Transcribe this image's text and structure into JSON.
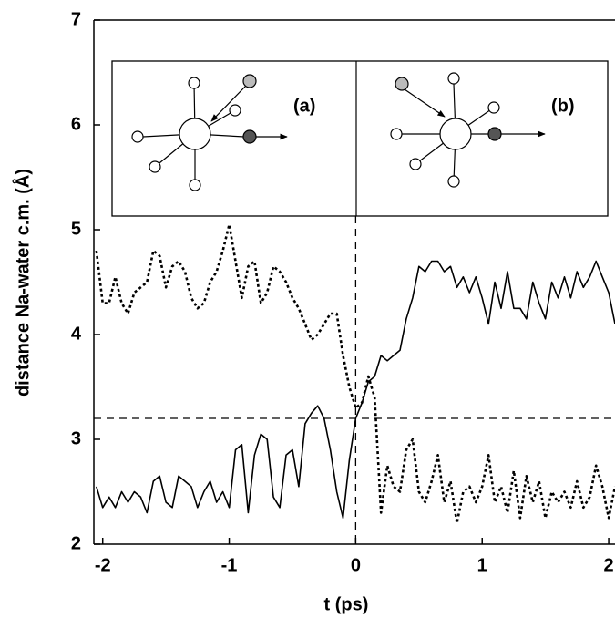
{
  "chart_data": {
    "type": "line",
    "x_label": "t (ps)",
    "y_label": "distance Na-water c.m. (Å)",
    "annotations": [
      "(a)",
      "(b)"
    ],
    "x": [
      -2.05,
      -2.0,
      -1.95,
      -1.9,
      -1.85,
      -1.8,
      -1.75,
      -1.7,
      -1.65,
      -1.6,
      -1.55,
      -1.5,
      -1.45,
      -1.4,
      -1.35,
      -1.3,
      -1.25,
      -1.2,
      -1.15,
      -1.1,
      -1.05,
      -1.0,
      -0.95,
      -0.9,
      -0.85,
      -0.8,
      -0.75,
      -0.7,
      -0.65,
      -0.6,
      -0.55,
      -0.5,
      -0.45,
      -0.4,
      -0.35,
      -0.3,
      -0.25,
      -0.2,
      -0.15,
      -0.1,
      -0.05,
      0,
      0.05,
      0.1,
      0.15,
      0.2,
      0.25,
      0.3,
      0.35,
      0.4,
      0.45,
      0.5,
      0.55,
      0.6,
      0.65,
      0.7,
      0.75,
      0.8,
      0.85,
      0.9,
      0.95,
      1.0,
      1.05,
      1.1,
      1.15,
      1.2,
      1.25,
      1.3,
      1.35,
      1.4,
      1.45,
      1.5,
      1.55,
      1.6,
      1.65,
      1.7,
      1.75,
      1.8,
      1.85,
      1.9,
      1.95,
      2.0,
      2.05
    ],
    "series": [
      {
        "color": "#000000",
        "dash": "solid",
        "values": [
          2.55,
          2.35,
          2.45,
          2.35,
          2.5,
          2.4,
          2.5,
          2.45,
          2.3,
          2.6,
          2.65,
          2.4,
          2.35,
          2.65,
          2.6,
          2.55,
          2.35,
          2.5,
          2.6,
          2.4,
          2.5,
          2.35,
          2.9,
          2.95,
          2.3,
          2.85,
          3.05,
          3.0,
          2.45,
          2.35,
          2.85,
          2.9,
          2.55,
          3.15,
          3.25,
          3.32,
          3.2,
          2.9,
          2.5,
          2.25,
          2.8,
          3.2,
          3.35,
          3.55,
          3.6,
          3.8,
          3.75,
          3.8,
          3.85,
          4.15,
          4.35,
          4.65,
          4.6,
          4.7,
          4.7,
          4.6,
          4.65,
          4.45,
          4.55,
          4.4,
          4.55,
          4.35,
          4.1,
          4.5,
          4.25,
          4.6,
          4.25,
          4.25,
          4.15,
          4.5,
          4.3,
          4.15,
          4.5,
          4.35,
          4.55,
          4.35,
          4.6,
          4.45,
          4.55,
          4.7,
          4.55,
          4.4,
          4.1
        ]
      },
      {
        "color": "#000000",
        "dash": "dotted",
        "values": [
          4.8,
          4.3,
          4.3,
          4.55,
          4.3,
          4.2,
          4.4,
          4.45,
          4.5,
          4.8,
          4.75,
          4.45,
          4.65,
          4.7,
          4.6,
          4.35,
          4.25,
          4.3,
          4.5,
          4.6,
          4.8,
          5.05,
          4.7,
          4.35,
          4.65,
          4.7,
          4.3,
          4.4,
          4.65,
          4.6,
          4.5,
          4.35,
          4.25,
          4.1,
          3.95,
          4.0,
          4.1,
          4.2,
          4.2,
          3.8,
          3.5,
          3.3,
          3.35,
          3.6,
          3.4,
          2.3,
          2.75,
          2.55,
          2.5,
          2.9,
          3.0,
          2.5,
          2.4,
          2.6,
          2.85,
          2.4,
          2.6,
          2.2,
          2.5,
          2.55,
          2.4,
          2.55,
          2.85,
          2.4,
          2.55,
          2.3,
          2.7,
          2.25,
          2.65,
          2.4,
          2.6,
          2.25,
          2.5,
          2.4,
          2.5,
          2.35,
          2.6,
          2.35,
          2.45,
          2.75,
          2.55,
          2.25,
          2.55
        ]
      }
    ],
    "hline": 3.2,
    "vline": 0,
    "xlim": [
      -2.07,
      2.05
    ],
    "ylim": [
      2,
      7
    ],
    "xticks": [
      -2,
      -1,
      0,
      1,
      2
    ],
    "yticks": [
      2,
      3,
      4,
      5,
      6,
      7
    ]
  }
}
